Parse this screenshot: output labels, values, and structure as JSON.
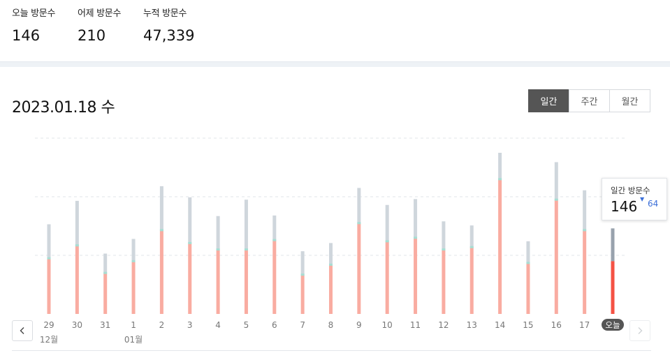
{
  "summary": [
    {
      "label": "오늘 방문수",
      "value": "146"
    },
    {
      "label": "어제 방문수",
      "value": "210"
    },
    {
      "label": "누적 방문수",
      "value": "47,339"
    }
  ],
  "date_title": "2023.01.18 수",
  "period_tabs": [
    {
      "label": "일간",
      "active": true
    },
    {
      "label": "주간",
      "active": false
    },
    {
      "label": "월간",
      "active": false
    }
  ],
  "nav": {
    "prev_icon": "chevron-left-icon",
    "next_icon": "chevron-right-icon"
  },
  "tooltip": {
    "label": "일간 방문수",
    "value": "146",
    "change": "64",
    "change_direction": "down"
  },
  "colors": {
    "new": "#f9aca1",
    "returning": "#cfd6dc",
    "separator": "#a6ded3",
    "today_new": "#f45244",
    "today_returning": "#98a2ad",
    "today_badge": "#555555",
    "tooltip_change": "#3b6fd8"
  },
  "chart_data": {
    "type": "bar",
    "stacked": true,
    "categories": [
      "29",
      "30",
      "31",
      "1",
      "2",
      "3",
      "4",
      "5",
      "6",
      "7",
      "8",
      "9",
      "10",
      "11",
      "12",
      "13",
      "14",
      "15",
      "16",
      "17",
      "오늘"
    ],
    "month_labels": [
      {
        "index": 0,
        "label": "12월"
      },
      {
        "index": 3,
        "label": "01월"
      }
    ],
    "highlight_index": 20,
    "ylim": [
      0,
      300
    ],
    "gridlines": [
      100,
      200,
      300
    ],
    "series": [
      {
        "key": "lower",
        "values": [
          95,
          117,
          70,
          90,
          143,
          121,
          110,
          110,
          126,
          67,
          84,
          155,
          124,
          130,
          110,
          114,
          230,
          87,
          195,
          143,
          90
        ]
      },
      {
        "key": "upper",
        "values": [
          58,
          76,
          33,
          38,
          75,
          78,
          57,
          85,
          42,
          40,
          37,
          60,
          62,
          66,
          48,
          37,
          45,
          37,
          64,
          68,
          56
        ]
      }
    ]
  }
}
